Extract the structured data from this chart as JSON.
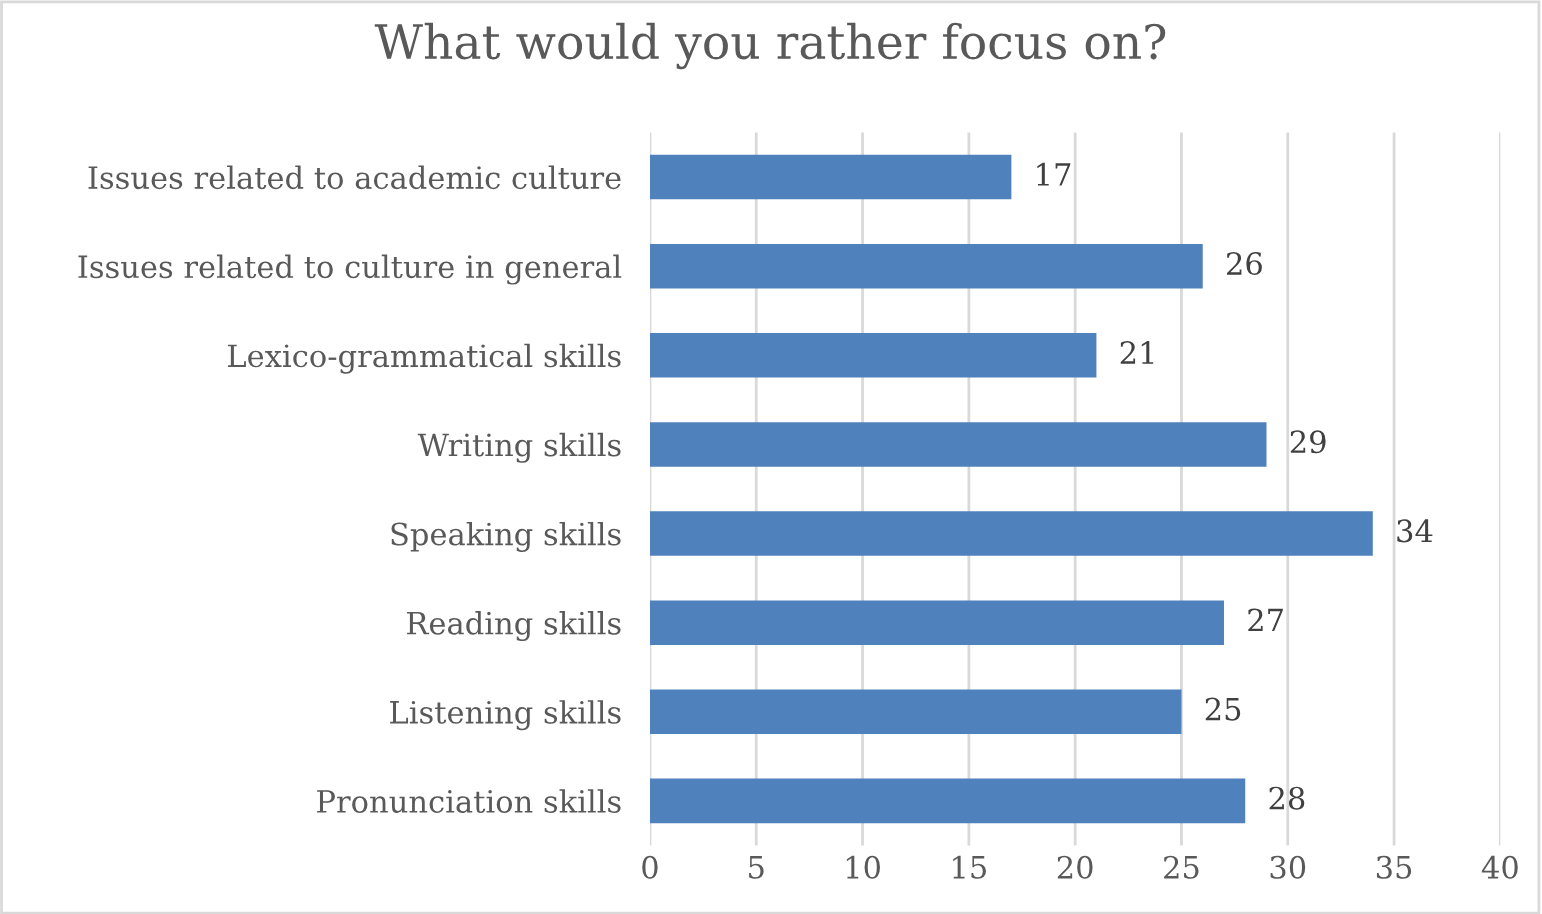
{
  "chart_data": {
    "type": "bar",
    "orientation": "horizontal",
    "title": "What would you rather focus on?",
    "categories": [
      "Issues related to academic culture",
      "Issues related to culture in general",
      "Lexico-grammatical skills",
      "Writing skills",
      "Speaking skills",
      "Reading skills",
      "Listening skills",
      "Pronunciation skills"
    ],
    "values": [
      17,
      26,
      21,
      29,
      34,
      27,
      25,
      28
    ],
    "color": "#4f81bd",
    "xlim": [
      0,
      40
    ],
    "xticks": [
      0,
      5,
      10,
      15,
      20,
      25,
      30,
      35,
      40
    ],
    "grid": "x",
    "data_labels": true,
    "legend": false
  }
}
